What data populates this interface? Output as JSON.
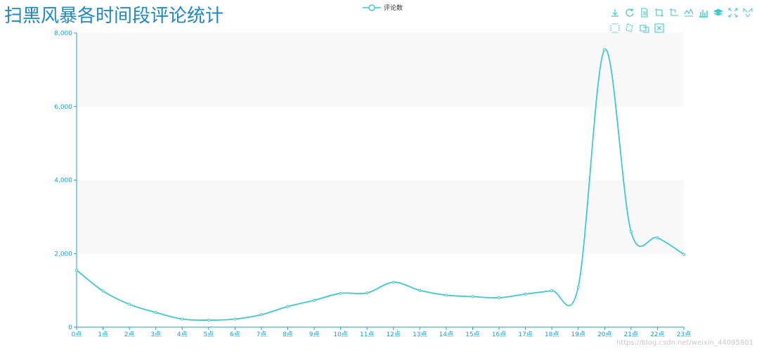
{
  "chart_data": {
    "type": "line",
    "title": "扫黑风暴各时间段评论统计",
    "legend": {
      "position": "top-center",
      "entries": [
        "评论数"
      ]
    },
    "categories": [
      "0点",
      "1点",
      "2点",
      "3点",
      "4点",
      "5点",
      "6点",
      "7点",
      "8点",
      "9点",
      "10点",
      "11点",
      "12点",
      "13点",
      "14点",
      "15点",
      "16点",
      "17点",
      "18点",
      "19点",
      "20点",
      "21点",
      "22点",
      "23点"
    ],
    "series": [
      {
        "name": "评论数",
        "values": [
          1550,
          980,
          620,
          400,
          220,
          190,
          220,
          340,
          560,
          730,
          920,
          930,
          1220,
          1000,
          870,
          830,
          800,
          900,
          990,
          1090,
          7550,
          2600,
          2430,
          1980
        ]
      }
    ],
    "ylim": [
      0,
      8000
    ],
    "yticks": [
      0,
      2000,
      4000,
      6000,
      8000
    ],
    "ytick_labels": [
      "0",
      "2,000",
      "4,000",
      "6,000",
      "8,000"
    ],
    "xlabel": "",
    "ylabel": "",
    "grid": "split-area bands",
    "colors": {
      "line": "#3dc9cf",
      "axis": "#1e9fd0",
      "title": "#1e88c7",
      "band": "#f8f8f8"
    }
  },
  "toolbox": {
    "row1": [
      "download-icon",
      "refresh-icon",
      "data-view-icon",
      "zoom-icon",
      "zoom-reset-icon",
      "line-chart-icon",
      "bar-chart-icon",
      "stack-icon",
      "expand-icon",
      "tiled-icon"
    ],
    "row2": [
      "brush-rect-icon",
      "brush-polygon-icon",
      "brush-keep-icon",
      "brush-clear-icon"
    ]
  },
  "watermark": "https://blog.csdn.net/weixin_44095801"
}
